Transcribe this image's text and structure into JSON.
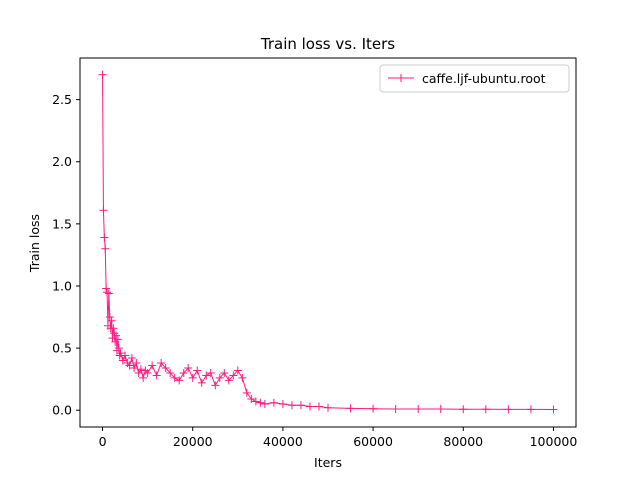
{
  "chart_data": {
    "type": "line",
    "title": "Train loss  vs. Iters",
    "xlabel": "Iters",
    "ylabel": "Train loss",
    "xlim": [
      -5000,
      105000
    ],
    "ylim": [
      -0.135,
      2.835
    ],
    "x_ticks": [
      0,
      20000,
      40000,
      60000,
      80000,
      100000
    ],
    "x_tick_labels": [
      "0",
      "20000",
      "40000",
      "60000",
      "80000",
      "100000"
    ],
    "y_ticks": [
      0.0,
      0.5,
      1.0,
      1.5,
      2.0,
      2.5
    ],
    "y_tick_labels": [
      "0.0",
      "0.5",
      "1.0",
      "1.5",
      "2.0",
      "2.5"
    ],
    "grid": false,
    "legend_position": "top-right",
    "line_color": "#ff1a80",
    "marker": "+",
    "series": [
      {
        "name": "caffe.ljf-ubuntu.root",
        "x": [
          0,
          200,
          400,
          600,
          800,
          1000,
          1200,
          1400,
          1600,
          1800,
          2000,
          2200,
          2400,
          2600,
          2800,
          3000,
          3200,
          3400,
          3600,
          3800,
          4000,
          4500,
          5000,
          5500,
          6000,
          6500,
          7000,
          7500,
          8000,
          8500,
          9000,
          9500,
          10000,
          11000,
          12000,
          13000,
          14000,
          15000,
          16000,
          17000,
          18000,
          19000,
          20000,
          21000,
          22000,
          23000,
          24000,
          25000,
          26000,
          27000,
          28000,
          29000,
          30000,
          31000,
          32000,
          33000,
          34000,
          35000,
          36000,
          38000,
          40000,
          42000,
          44000,
          46000,
          48000,
          50000,
          55000,
          60000,
          65000,
          70000,
          75000,
          80000,
          85000,
          90000,
          95000,
          100000
        ],
        "y": [
          2.7,
          1.61,
          1.39,
          1.3,
          0.98,
          0.95,
          0.68,
          0.94,
          0.75,
          0.66,
          0.72,
          0.58,
          0.66,
          0.62,
          0.55,
          0.6,
          0.48,
          0.57,
          0.5,
          0.44,
          0.46,
          0.4,
          0.44,
          0.38,
          0.36,
          0.42,
          0.34,
          0.38,
          0.3,
          0.33,
          0.26,
          0.32,
          0.3,
          0.36,
          0.28,
          0.38,
          0.34,
          0.3,
          0.26,
          0.24,
          0.3,
          0.34,
          0.26,
          0.32,
          0.22,
          0.28,
          0.3,
          0.2,
          0.26,
          0.3,
          0.24,
          0.28,
          0.32,
          0.26,
          0.14,
          0.09,
          0.07,
          0.06,
          0.05,
          0.06,
          0.05,
          0.04,
          0.04,
          0.03,
          0.03,
          0.02,
          0.015,
          0.012,
          0.01,
          0.01,
          0.01,
          0.008,
          0.008,
          0.007,
          0.007,
          0.006
        ]
      }
    ]
  }
}
